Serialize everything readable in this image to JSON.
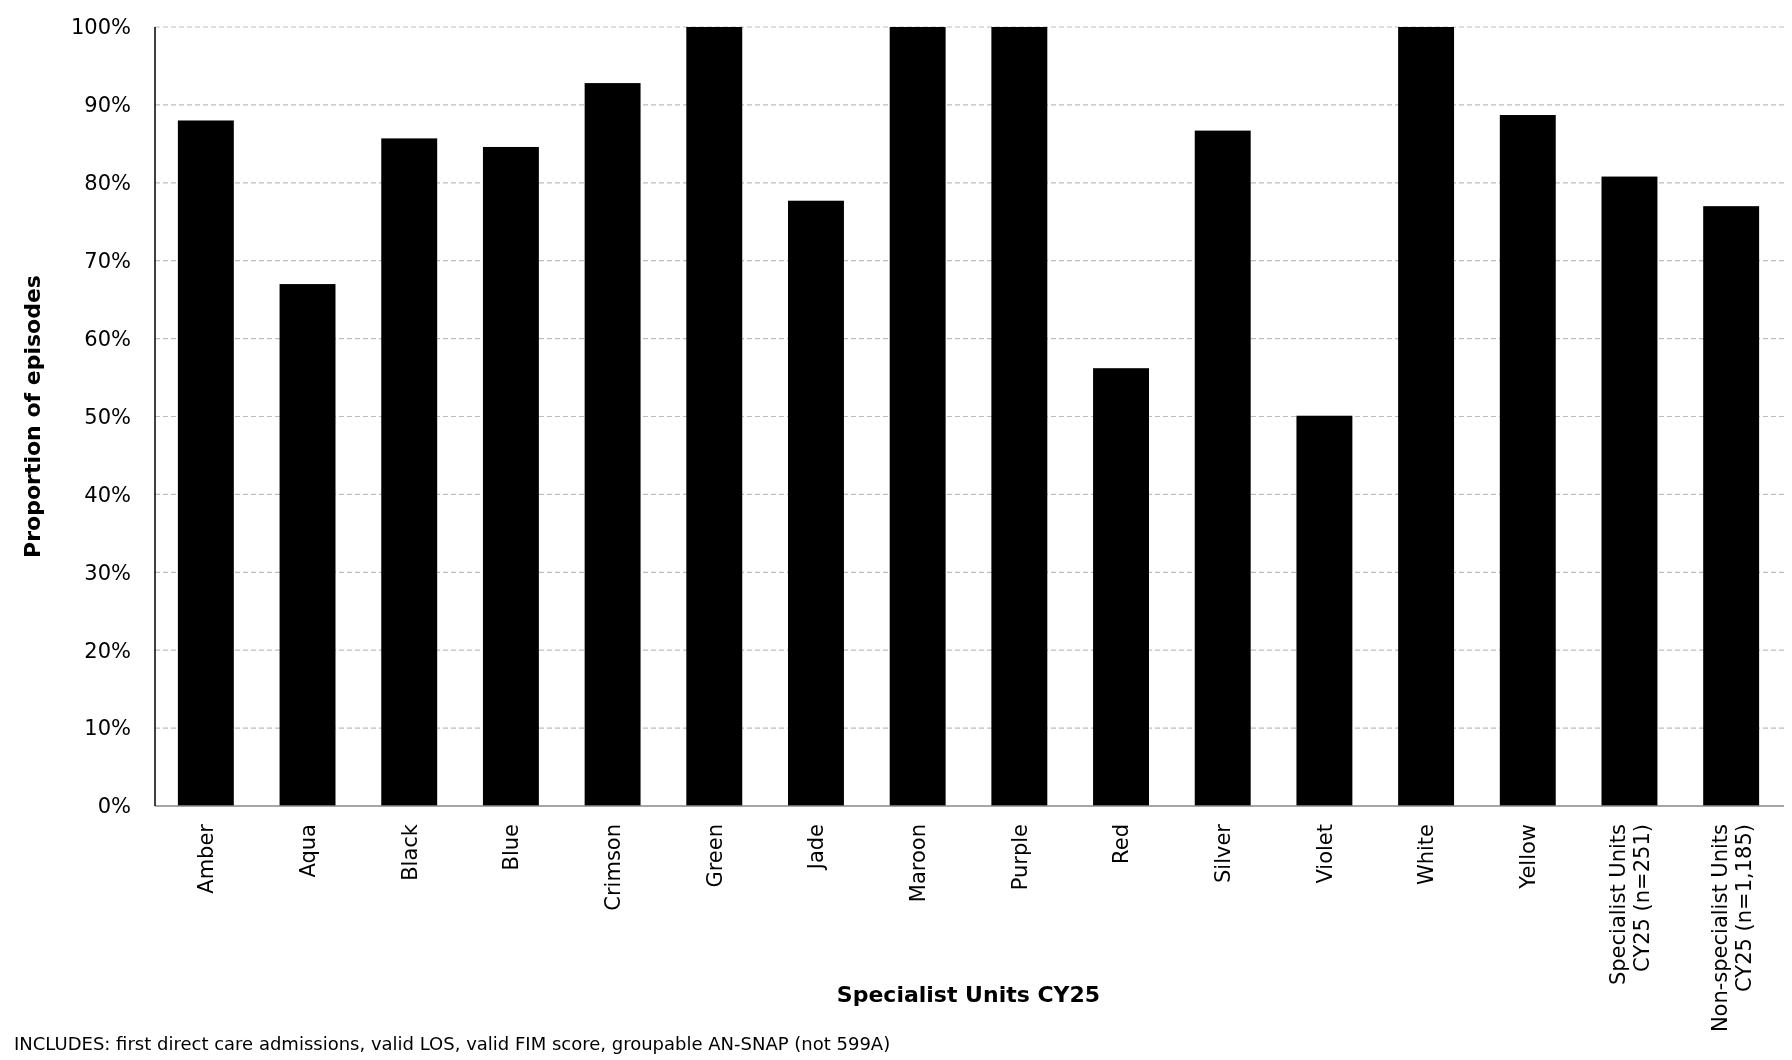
{
  "chart_data": {
    "type": "bar",
    "xlabel": "Specialist Units CY25",
    "ylabel": "Proportion of episodes",
    "categories": [
      "Amber",
      "Aqua",
      "Black",
      "Blue",
      "Crimson",
      "Green",
      "Jade",
      "Maroon",
      "Purple",
      "Red",
      "Silver",
      "Violet",
      "White",
      "Yellow",
      "Specialist Units CY25 (n=251)",
      "Non-specialist Units CY25 (n=1,185)"
    ],
    "values": [
      88,
      67,
      85.7,
      84.6,
      92.8,
      100,
      77.7,
      100,
      100,
      56.2,
      86.7,
      50.1,
      100,
      88.7,
      80.8,
      77
    ],
    "color": "#000000",
    "ylim": [
      0,
      100
    ],
    "yticks": [
      {
        "value": 0,
        "label": "0%"
      },
      {
        "value": 10,
        "label": "10%"
      },
      {
        "value": 20,
        "label": "20%"
      },
      {
        "value": 30,
        "label": "30%"
      },
      {
        "value": 40,
        "label": "40%"
      },
      {
        "value": 50,
        "label": "50%"
      },
      {
        "value": 60,
        "label": "60%"
      },
      {
        "value": 70,
        "label": "70%"
      },
      {
        "value": 80,
        "label": "80%"
      },
      {
        "value": 90,
        "label": "90%"
      },
      {
        "value": 100,
        "label": "100%"
      }
    ],
    "grid": "y",
    "annotations": [
      "INCLUDES: first direct care admissions, valid LOS, valid FIM score, groupable AN-SNAP (not 599A)"
    ]
  }
}
